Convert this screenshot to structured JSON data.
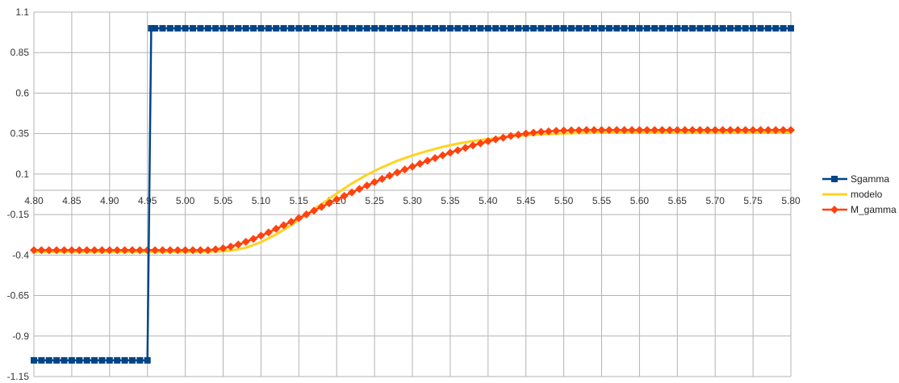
{
  "chart_data": {
    "type": "line",
    "title": "",
    "xlabel": "",
    "ylabel": "",
    "xlim": [
      4.8,
      5.8
    ],
    "ylim": [
      -1.15,
      1.1
    ],
    "x_tick_labels": [
      "4.80",
      "4.85",
      "4.90",
      "4.95",
      "5.00",
      "5.05",
      "5.10",
      "5.15",
      "5.20",
      "5.25",
      "5.30",
      "5.35",
      "5.40",
      "5.45",
      "5.50",
      "5.55",
      "5.60",
      "5.65",
      "5.70",
      "5.75",
      "5.80"
    ],
    "y_tick_labels": [
      "1.1",
      "0.85",
      "0.6",
      "0.35",
      "0.1",
      "-0.15",
      "-0.4",
      "-0.65",
      "-0.9",
      "-1.15"
    ],
    "grid": true,
    "legend": "right",
    "series": [
      {
        "name": "Sgamma",
        "color": "#004586",
        "marker": "square",
        "x": [
          4.8,
          4.81,
          4.82,
          4.83,
          4.84,
          4.85,
          4.86,
          4.87,
          4.88,
          4.89,
          4.9,
          4.91,
          4.92,
          4.93,
          4.94,
          4.95,
          4.955,
          4.96,
          4.97,
          4.98,
          4.99,
          5.0,
          5.01,
          5.02,
          5.03,
          5.04,
          5.05,
          5.06,
          5.07,
          5.08,
          5.09,
          5.1,
          5.11,
          5.12,
          5.13,
          5.14,
          5.15,
          5.16,
          5.17,
          5.18,
          5.19,
          5.2,
          5.21,
          5.22,
          5.23,
          5.24,
          5.25,
          5.26,
          5.27,
          5.28,
          5.29,
          5.3,
          5.31,
          5.32,
          5.33,
          5.34,
          5.35,
          5.36,
          5.37,
          5.38,
          5.39,
          5.4,
          5.41,
          5.42,
          5.43,
          5.44,
          5.45,
          5.46,
          5.47,
          5.48,
          5.49,
          5.5,
          5.51,
          5.52,
          5.53,
          5.54,
          5.55,
          5.56,
          5.57,
          5.58,
          5.59,
          5.6,
          5.61,
          5.62,
          5.63,
          5.64,
          5.65,
          5.66,
          5.67,
          5.68,
          5.69,
          5.7,
          5.71,
          5.72,
          5.73,
          5.74,
          5.75,
          5.76,
          5.77,
          5.78,
          5.79,
          5.8
        ],
        "y": [
          -1.05,
          -1.05,
          -1.05,
          -1.05,
          -1.05,
          -1.05,
          -1.05,
          -1.05,
          -1.05,
          -1.05,
          -1.05,
          -1.05,
          -1.05,
          -1.05,
          -1.05,
          -1.05,
          1.0,
          1.0,
          1.0,
          1.0,
          1.0,
          1.0,
          1.0,
          1.0,
          1.0,
          1.0,
          1.0,
          1.0,
          1.0,
          1.0,
          1.0,
          1.0,
          1.0,
          1.0,
          1.0,
          1.0,
          1.0,
          1.0,
          1.0,
          1.0,
          1.0,
          1.0,
          1.0,
          1.0,
          1.0,
          1.0,
          1.0,
          1.0,
          1.0,
          1.0,
          1.0,
          1.0,
          1.0,
          1.0,
          1.0,
          1.0,
          1.0,
          1.0,
          1.0,
          1.0,
          1.0,
          1.0,
          1.0,
          1.0,
          1.0,
          1.0,
          1.0,
          1.0,
          1.0,
          1.0,
          1.0,
          1.0,
          1.0,
          1.0,
          1.0,
          1.0,
          1.0,
          1.0,
          1.0,
          1.0,
          1.0,
          1.0,
          1.0,
          1.0,
          1.0,
          1.0,
          1.0,
          1.0,
          1.0,
          1.0,
          1.0,
          1.0,
          1.0,
          1.0,
          1.0,
          1.0,
          1.0,
          1.0,
          1.0,
          1.0,
          1.0,
          1.0
        ]
      },
      {
        "name": "modelo",
        "color": "#ffd320",
        "marker": "none",
        "x": [
          4.8,
          4.85,
          4.9,
          4.95,
          5.0,
          5.02,
          5.04,
          5.06,
          5.08,
          5.1,
          5.12,
          5.14,
          5.16,
          5.18,
          5.2,
          5.22,
          5.24,
          5.26,
          5.28,
          5.3,
          5.32,
          5.34,
          5.36,
          5.38,
          5.4,
          5.42,
          5.44,
          5.46,
          5.48,
          5.5,
          5.52,
          5.55,
          5.6,
          5.65,
          5.7,
          5.75,
          5.8
        ],
        "y": [
          -0.38,
          -0.38,
          -0.38,
          -0.38,
          -0.38,
          -0.38,
          -0.378,
          -0.373,
          -0.355,
          -0.32,
          -0.272,
          -0.215,
          -0.15,
          -0.085,
          -0.02,
          0.042,
          0.096,
          0.142,
          0.182,
          0.215,
          0.243,
          0.268,
          0.288,
          0.304,
          0.316,
          0.327,
          0.336,
          0.343,
          0.347,
          0.351,
          0.354,
          0.357,
          0.359,
          0.36,
          0.36,
          0.36,
          0.36
        ]
      },
      {
        "name": "M_gamma",
        "color": "#ff420e",
        "marker": "diamond",
        "x": [
          4.8,
          4.81,
          4.82,
          4.83,
          4.84,
          4.85,
          4.86,
          4.87,
          4.88,
          4.89,
          4.9,
          4.91,
          4.92,
          4.93,
          4.94,
          4.95,
          4.96,
          4.97,
          4.98,
          4.99,
          5.0,
          5.01,
          5.02,
          5.03,
          5.04,
          5.05,
          5.06,
          5.07,
          5.08,
          5.09,
          5.1,
          5.11,
          5.12,
          5.13,
          5.14,
          5.15,
          5.16,
          5.17,
          5.18,
          5.19,
          5.2,
          5.21,
          5.22,
          5.23,
          5.24,
          5.25,
          5.26,
          5.27,
          5.28,
          5.29,
          5.3,
          5.31,
          5.32,
          5.33,
          5.34,
          5.35,
          5.36,
          5.37,
          5.38,
          5.39,
          5.4,
          5.41,
          5.42,
          5.43,
          5.44,
          5.45,
          5.46,
          5.47,
          5.48,
          5.49,
          5.5,
          5.51,
          5.52,
          5.53,
          5.54,
          5.55,
          5.56,
          5.57,
          5.58,
          5.59,
          5.6,
          5.61,
          5.62,
          5.63,
          5.64,
          5.65,
          5.66,
          5.67,
          5.68,
          5.69,
          5.7,
          5.71,
          5.72,
          5.73,
          5.74,
          5.75,
          5.76,
          5.77,
          5.78,
          5.79,
          5.8
        ],
        "y": [
          -0.37,
          -0.37,
          -0.37,
          -0.37,
          -0.37,
          -0.37,
          -0.37,
          -0.37,
          -0.37,
          -0.37,
          -0.37,
          -0.37,
          -0.37,
          -0.37,
          -0.37,
          -0.37,
          -0.37,
          -0.37,
          -0.37,
          -0.37,
          -0.37,
          -0.37,
          -0.37,
          -0.37,
          -0.365,
          -0.358,
          -0.348,
          -0.335,
          -0.318,
          -0.3,
          -0.28,
          -0.26,
          -0.238,
          -0.216,
          -0.194,
          -0.172,
          -0.149,
          -0.126,
          -0.103,
          -0.08,
          -0.057,
          -0.035,
          -0.013,
          0.008,
          0.029,
          0.05,
          0.07,
          0.09,
          0.11,
          0.128,
          0.146,
          0.164,
          0.182,
          0.199,
          0.216,
          0.232,
          0.247,
          0.262,
          0.277,
          0.29,
          0.303,
          0.314,
          0.325,
          0.335,
          0.343,
          0.35,
          0.356,
          0.361,
          0.364,
          0.367,
          0.369,
          0.37,
          0.371,
          0.372,
          0.372,
          0.372,
          0.372,
          0.372,
          0.372,
          0.372,
          0.372,
          0.372,
          0.372,
          0.372,
          0.372,
          0.372,
          0.372,
          0.372,
          0.372,
          0.372,
          0.372,
          0.372,
          0.372,
          0.372,
          0.372,
          0.372,
          0.372,
          0.372,
          0.372,
          0.372,
          0.372
        ]
      }
    ]
  }
}
